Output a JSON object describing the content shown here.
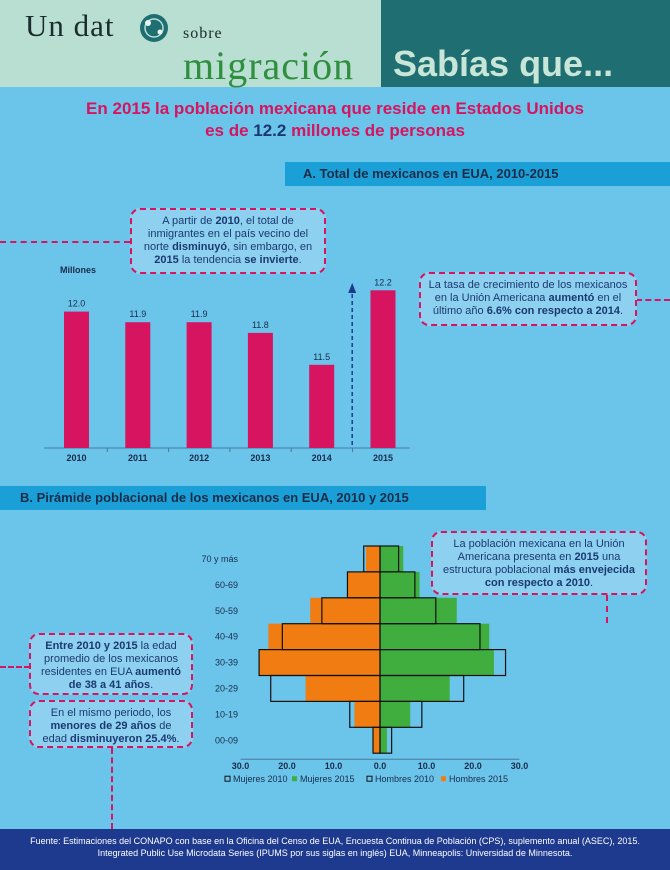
{
  "header": {
    "logo_un_dat": "Un dat",
    "logo_sobre": "sobre",
    "logo_migracion": "migración",
    "sabias": "Sabías que..."
  },
  "headline": {
    "line1": "En 2015 la población mexicana que reside en Estados Unidos",
    "line2_pre": "es de ",
    "line2_num": "12.2",
    "line2_post": " millones de personas"
  },
  "section_a_title": "A. Total de mexicanos en EUA, 2010-2015",
  "section_b_title": "B. Pirámide poblacional de los mexicanos en EUA, 2010 y 2015",
  "notes": {
    "a_left": [
      {
        "t": "A partir de ",
        "b": false
      },
      {
        "t": "2010",
        "b": true
      },
      {
        "t": ", el total de inmigrantes en el país vecino del norte ",
        "b": false
      },
      {
        "t": "disminuyó",
        "b": true
      },
      {
        "t": ", sin embargo, en ",
        "b": false
      },
      {
        "t": "2015",
        "b": true
      },
      {
        "t": " la tendencia ",
        "b": false
      },
      {
        "t": "se invierte",
        "b": true
      },
      {
        "t": ".",
        "b": false
      }
    ],
    "a_right": [
      {
        "t": "La tasa de crecimiento de los mexicanos en la Unión Americana ",
        "b": false
      },
      {
        "t": "aumentó",
        "b": true
      },
      {
        "t": " en el último año ",
        "b": false
      },
      {
        "t": "6.6% con respecto a 2014",
        "b": true
      },
      {
        "t": ".",
        "b": false
      }
    ],
    "b_right": [
      {
        "t": "La población mexicana en la Unión Americana presenta en ",
        "b": false
      },
      {
        "t": "2015",
        "b": true
      },
      {
        "t": " una estructura poblacional ",
        "b": false
      },
      {
        "t": "más envejecida con respecto a 2010",
        "b": true
      },
      {
        "t": ".",
        "b": false
      }
    ],
    "b_left1": [
      {
        "t": "Entre 2010 y 2015",
        "b": true
      },
      {
        "t": " la edad promedio de los mexicanos residentes en EUA ",
        "b": false
      },
      {
        "t": "aumentó de 38 a 41 años",
        "b": true
      },
      {
        "t": ".",
        "b": false
      }
    ],
    "b_left2": [
      {
        "t": "En el mismo periodo, los ",
        "b": false
      },
      {
        "t": "menores de 29 años",
        "b": true
      },
      {
        "t": " de edad ",
        "b": false
      },
      {
        "t": "disminuyeron 25.4%",
        "b": true
      },
      {
        "t": ".",
        "b": false
      }
    ]
  },
  "chart_data": [
    {
      "type": "bar",
      "title": "A. Total de mexicanos en EUA, 2010-2015",
      "ylabel": "Millones",
      "categories": [
        "2010",
        "2011",
        "2012",
        "2013",
        "2014",
        "2015"
      ],
      "values": [
        12.0,
        11.9,
        11.9,
        11.8,
        11.5,
        12.2
      ],
      "labels": [
        "12.0",
        "11.9",
        "11.9",
        "11.8",
        "11.5",
        "12.2"
      ],
      "color": "#d6145f"
    },
    {
      "type": "bar",
      "orientation": "horizontal-population-pyramid",
      "title": "B. Pirámide poblacional de los mexicanos en EUA, 2010 y 2015",
      "categories": [
        "00-09",
        "10-19",
        "20-29",
        "30-39",
        "40-49",
        "50-59",
        "60-69",
        "70 y más"
      ],
      "xlim": [
        -30,
        30
      ],
      "xticks": [
        -30,
        -20,
        -10,
        0,
        10,
        20,
        30
      ],
      "xtick_labels": [
        "30.0",
        "20.0",
        "10.0",
        "0.0",
        "10.0",
        "20.0",
        "30.0"
      ],
      "series": [
        {
          "name": "Mujeres  2010",
          "side": "left",
          "style": "outline",
          "values": [
            1.5,
            6.5,
            23.5,
            26.0,
            21.0,
            12.5,
            7.0,
            3.5
          ]
        },
        {
          "name": "Mujeres  2015",
          "side": "right",
          "style": "filled",
          "color": "#3fae3f",
          "values": [
            1.5,
            6.5,
            15.0,
            24.5,
            23.5,
            16.5,
            8.5,
            5.0
          ]
        },
        {
          "name": "Hombres 2010",
          "side": "right",
          "style": "outline",
          "values": [
            2.5,
            9.0,
            18.0,
            27.0,
            21.5,
            12.0,
            7.5,
            4.0
          ]
        },
        {
          "name": "Hombres 2015",
          "side": "left",
          "style": "filled",
          "color": "#f07c12",
          "values": [
            1.5,
            5.5,
            16.0,
            26.0,
            24.0,
            15.0,
            7.0,
            3.0
          ]
        }
      ],
      "legend": "bottom"
    }
  ],
  "footer": "Fuente: Estimaciones del CONAPO con base en la Oficina del Censo de EUA, Encuesta Continua de Población (CPS), suplemento anual (ASEC), 2015. Integrated Public Use Microdata Series (IPUMS por sus siglas en inglés) EUA, Minneapolis: Universidad de Minnesota."
}
